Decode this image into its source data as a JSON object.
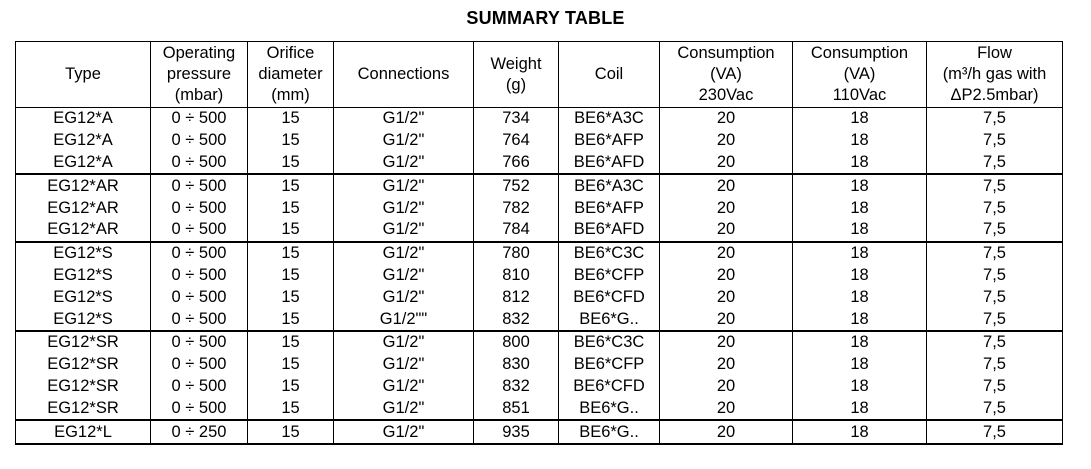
{
  "title": "SUMMARY TABLE",
  "columns": [
    {
      "lines": [
        "Type"
      ]
    },
    {
      "lines": [
        "Operating",
        "pressure",
        "(mbar)"
      ]
    },
    {
      "lines": [
        "Orifice",
        "diameter",
        "(mm)"
      ]
    },
    {
      "lines": [
        "Connections"
      ]
    },
    {
      "lines": [
        "Weight",
        "(g)"
      ]
    },
    {
      "lines": [
        "Coil"
      ]
    },
    {
      "lines": [
        "Consumption",
        "(VA)",
        "230Vac"
      ]
    },
    {
      "lines": [
        "Consumption",
        "(VA)",
        "110Vac"
      ]
    },
    {
      "lines": [
        "Flow",
        "(m³/h gas with",
        "ΔP2.5mbar)"
      ]
    }
  ],
  "groups": [
    {
      "rows": [
        [
          "EG12*A",
          "0 ÷ 500",
          "15",
          "G1/2\"",
          "734",
          "BE6*A3C",
          "20",
          "18",
          "7,5"
        ],
        [
          "EG12*A",
          "0 ÷ 500",
          "15",
          "G1/2\"",
          "764",
          "BE6*AFP",
          "20",
          "18",
          "7,5"
        ],
        [
          "EG12*A",
          "0 ÷ 500",
          "15",
          "G1/2\"",
          "766",
          "BE6*AFD",
          "20",
          "18",
          "7,5"
        ]
      ]
    },
    {
      "rows": [
        [
          "EG12*AR",
          "0 ÷ 500",
          "15",
          "G1/2\"",
          "752",
          "BE6*A3C",
          "20",
          "18",
          "7,5"
        ],
        [
          "EG12*AR",
          "0 ÷ 500",
          "15",
          "G1/2\"",
          "782",
          "BE6*AFP",
          "20",
          "18",
          "7,5"
        ],
        [
          "EG12*AR",
          "0 ÷ 500",
          "15",
          "G1/2\"",
          "784",
          "BE6*AFD",
          "20",
          "18",
          "7,5"
        ]
      ]
    },
    {
      "rows": [
        [
          "EG12*S",
          "0 ÷ 500",
          "15",
          "G1/2\"",
          "780",
          "BE6*C3C",
          "20",
          "18",
          "7,5"
        ],
        [
          "EG12*S",
          "0 ÷ 500",
          "15",
          "G1/2\"",
          "810",
          "BE6*CFP",
          "20",
          "18",
          "7,5"
        ],
        [
          "EG12*S",
          "0 ÷ 500",
          "15",
          "G1/2\"",
          "812",
          "BE6*CFD",
          "20",
          "18",
          "7,5"
        ],
        [
          "EG12*S",
          "0 ÷ 500",
          "15",
          "G1/2\"\"",
          "832",
          "BE6*G..",
          "20",
          "18",
          "7,5"
        ]
      ]
    },
    {
      "rows": [
        [
          "EG12*SR",
          "0 ÷ 500",
          "15",
          "G1/2\"",
          "800",
          "BE6*C3C",
          "20",
          "18",
          "7,5"
        ],
        [
          "EG12*SR",
          "0 ÷ 500",
          "15",
          "G1/2\"",
          "830",
          "BE6*CFP",
          "20",
          "18",
          "7,5"
        ],
        [
          "EG12*SR",
          "0 ÷ 500",
          "15",
          "G1/2\"",
          "832",
          "BE6*CFD",
          "20",
          "18",
          "7,5"
        ],
        [
          "EG12*SR",
          "0 ÷ 500",
          "15",
          "G1/2\"",
          "851",
          "BE6*G..",
          "20",
          "18",
          "7,5"
        ]
      ]
    },
    {
      "rows": [
        [
          "EG12*L",
          "0 ÷ 250",
          "15",
          "G1/2\"",
          "935",
          "BE6*G..",
          "20",
          "18",
          "7,5"
        ]
      ]
    }
  ]
}
